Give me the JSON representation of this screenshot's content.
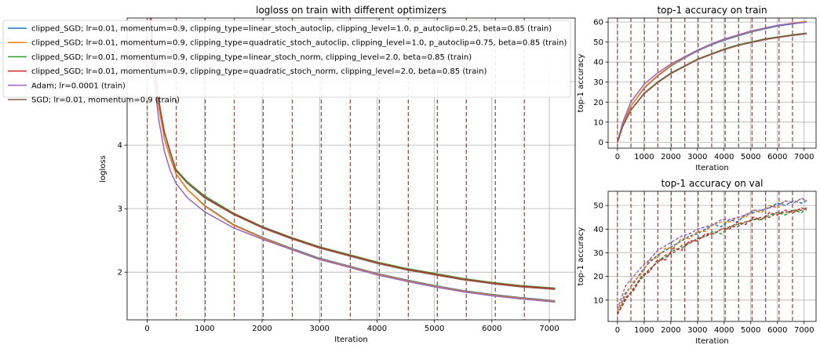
{
  "chart_data": [
    {
      "id": "main",
      "type": "line",
      "title": "logloss on train with different optimizers",
      "xlabel": "Iteration",
      "ylabel": "logloss",
      "xlim": [
        -350,
        7450
      ],
      "ylim": [
        1.25,
        6.0
      ],
      "xticks": [
        0,
        1000,
        2000,
        3000,
        4000,
        5000,
        6000,
        7000
      ],
      "yticks": [
        2,
        3,
        4,
        5
      ],
      "grid": true,
      "legend_position": "upper-left",
      "epoch_markers": [
        0,
        505,
        1010,
        1515,
        2020,
        2525,
        3030,
        3535,
        4040,
        4545,
        5050,
        5555,
        6060,
        6565
      ],
      "series": [
        {
          "name": "clipped_SGD;  lr=0.01, momentum=0.9, clipping_type=linear_stoch_autoclip, clipping_level=1.0, p_autoclip=0.25, beta=0.85 (train)",
          "color": "#1f77b4",
          "x": [
            0,
            50,
            100,
            200,
            300,
            400,
            500,
            700,
            1000,
            1500,
            2000,
            2500,
            3000,
            3500,
            4000,
            4500,
            5000,
            5500,
            6000,
            6500,
            7100
          ],
          "y": [
            6.9,
            6.2,
            5.4,
            4.6,
            4.1,
            3.8,
            3.55,
            3.3,
            3.05,
            2.75,
            2.55,
            2.38,
            2.22,
            2.1,
            1.98,
            1.88,
            1.79,
            1.71,
            1.65,
            1.6,
            1.55
          ]
        },
        {
          "name": "clipped_SGD;  lr=0.01, momentum=0.9, clipping_type=quadratic_stoch_autoclip, clipping_level=1.0, p_autoclip=0.75, beta=0.85 (train)",
          "color": "#ff7f0e",
          "x": [
            0,
            50,
            100,
            200,
            300,
            400,
            500,
            700,
            1000,
            1500,
            2000,
            2500,
            3000,
            3500,
            4000,
            4500,
            5000,
            5500,
            6000,
            6500,
            7100
          ],
          "y": [
            6.9,
            6.2,
            5.4,
            4.6,
            4.1,
            3.8,
            3.55,
            3.3,
            3.04,
            2.74,
            2.54,
            2.37,
            2.21,
            2.09,
            1.97,
            1.87,
            1.78,
            1.7,
            1.64,
            1.59,
            1.54
          ]
        },
        {
          "name": "clipped_SGD;  lr=0.01, momentum=0.9, clipping_type=linear_stoch_norm, clipping_level=2.0, beta=0.85 (train)",
          "color": "#2ca02c",
          "x": [
            0,
            50,
            100,
            200,
            300,
            400,
            500,
            700,
            1000,
            1500,
            2000,
            2500,
            3000,
            3500,
            4000,
            4500,
            5000,
            5500,
            6000,
            6500,
            7100
          ],
          "y": [
            6.9,
            6.25,
            5.5,
            4.7,
            4.2,
            3.9,
            3.62,
            3.42,
            3.2,
            2.93,
            2.72,
            2.55,
            2.4,
            2.28,
            2.16,
            2.06,
            1.98,
            1.9,
            1.84,
            1.79,
            1.75
          ]
        },
        {
          "name": "clipped_SGD;  lr=0.01, momentum=0.9, clipping_type=quadratic_stoch_norm, clipping_level=2.0, beta=0.85 (train)",
          "color": "#d62728",
          "x": [
            0,
            50,
            100,
            200,
            300,
            400,
            500,
            700,
            1000,
            1500,
            2000,
            2500,
            3000,
            3500,
            4000,
            4500,
            5000,
            5500,
            6000,
            6500,
            7100
          ],
          "y": [
            6.9,
            6.25,
            5.5,
            4.7,
            4.2,
            3.9,
            3.6,
            3.4,
            3.18,
            2.92,
            2.71,
            2.54,
            2.39,
            2.27,
            2.15,
            2.05,
            1.97,
            1.89,
            1.83,
            1.78,
            1.74
          ]
        },
        {
          "name": "Adam;  lr=0.0001 (train)",
          "color": "#9467bd",
          "x": [
            0,
            50,
            100,
            200,
            300,
            400,
            500,
            700,
            1000,
            1500,
            2000,
            2500,
            3000,
            3500,
            4000,
            4500,
            5000,
            5500,
            6000,
            6500,
            7100
          ],
          "y": [
            6.9,
            6.0,
            5.2,
            4.4,
            3.9,
            3.6,
            3.4,
            3.17,
            2.95,
            2.7,
            2.52,
            2.36,
            2.2,
            2.08,
            1.96,
            1.86,
            1.77,
            1.69,
            1.63,
            1.58,
            1.53
          ]
        },
        {
          "name": "SGD;  lr=0.01, momentum=0.9 (train)",
          "color": "#8c564b",
          "x": [
            0,
            50,
            100,
            200,
            300,
            400,
            500,
            700,
            1000,
            1500,
            2000,
            2500,
            3000,
            3500,
            4000,
            4500,
            5000,
            5500,
            6000,
            6500,
            7100
          ],
          "y": [
            6.9,
            6.25,
            5.5,
            4.7,
            4.2,
            3.88,
            3.6,
            3.4,
            3.17,
            2.91,
            2.7,
            2.53,
            2.38,
            2.26,
            2.14,
            2.04,
            1.96,
            1.88,
            1.82,
            1.77,
            1.73
          ]
        }
      ]
    },
    {
      "id": "acc_train",
      "type": "line",
      "title": "top-1 accuracy on train",
      "xlabel": "Iteration",
      "ylabel": "top-1 accuracy",
      "xlim": [
        -350,
        7450
      ],
      "ylim": [
        -3,
        62
      ],
      "xticks": [
        0,
        1000,
        2000,
        3000,
        4000,
        5000,
        6000,
        7000
      ],
      "yticks": [
        0,
        10,
        20,
        30,
        40,
        50,
        60
      ],
      "grid": true,
      "epoch_markers": [
        0,
        505,
        1010,
        1515,
        2020,
        2525,
        3030,
        3535,
        4040,
        4545,
        5050,
        5555,
        6060,
        6565
      ],
      "series": [
        {
          "name": "clipped_SGD linear_stoch_autoclip",
          "color": "#1f77b4",
          "x": [
            0,
            200,
            500,
            1000,
            1500,
            2000,
            2500,
            3000,
            3500,
            4000,
            4500,
            5000,
            5500,
            6000,
            6500,
            7100
          ],
          "y": [
            0,
            9,
            18,
            27,
            33,
            38,
            42,
            45.5,
            48.5,
            51,
            53,
            55,
            56.5,
            58,
            59,
            60
          ]
        },
        {
          "name": "clipped_SGD quadratic_stoch_autoclip",
          "color": "#ff7f0e",
          "x": [
            0,
            200,
            500,
            1000,
            1500,
            2000,
            2500,
            3000,
            3500,
            4000,
            4500,
            5000,
            5500,
            6000,
            6500,
            7100
          ],
          "y": [
            0,
            9,
            18,
            27.3,
            33.3,
            38.3,
            42.3,
            45.8,
            48.8,
            51.3,
            53.3,
            55.3,
            56.8,
            58.3,
            59.3,
            60.3
          ]
        },
        {
          "name": "clipped_SGD linear_stoch_norm",
          "color": "#2ca02c",
          "x": [
            0,
            200,
            500,
            1000,
            1500,
            2000,
            2500,
            3000,
            3500,
            4000,
            4500,
            5000,
            5500,
            6000,
            6500,
            7100
          ],
          "y": [
            0,
            8,
            16,
            24.5,
            30,
            34.5,
            38,
            41.5,
            44,
            46.5,
            48.5,
            50,
            51.5,
            52.5,
            53.5,
            54.5
          ]
        },
        {
          "name": "clipped_SGD quadratic_stoch_norm",
          "color": "#d62728",
          "x": [
            0,
            200,
            500,
            1000,
            1500,
            2000,
            2500,
            3000,
            3500,
            4000,
            4500,
            5000,
            5500,
            6000,
            6500,
            7100
          ],
          "y": [
            0,
            8,
            16,
            24.3,
            29.8,
            34.3,
            37.8,
            41.3,
            43.8,
            46.3,
            48.3,
            49.8,
            51.3,
            52.3,
            53.3,
            54.3
          ]
        },
        {
          "name": "Adam",
          "color": "#9467bd",
          "x": [
            0,
            200,
            500,
            1000,
            1500,
            2000,
            2500,
            3000,
            3500,
            4000,
            4500,
            5000,
            5500,
            6000,
            6500,
            7100
          ],
          "y": [
            0,
            10,
            20,
            29,
            34.5,
            39,
            42.5,
            46,
            49,
            51.5,
            53.5,
            55.5,
            57,
            58.3,
            59.2,
            60
          ]
        },
        {
          "name": "SGD",
          "color": "#8c564b",
          "x": [
            0,
            200,
            500,
            1000,
            1500,
            2000,
            2500,
            3000,
            3500,
            4000,
            4500,
            5000,
            5500,
            6000,
            6500,
            7100
          ],
          "y": [
            0,
            8,
            16,
            24.2,
            29.7,
            34.2,
            37.7,
            41.2,
            43.7,
            46.2,
            48.2,
            49.7,
            51.2,
            52.2,
            53.2,
            54.2
          ]
        }
      ]
    },
    {
      "id": "acc_val",
      "type": "line",
      "title": "top-1 accuracy on val",
      "xlabel": "Iteration",
      "ylabel": "top-1 accuracy",
      "xlim": [
        -350,
        7450
      ],
      "ylim": [
        1,
        56
      ],
      "xticks": [
        0,
        1000,
        2000,
        3000,
        4000,
        5000,
        6000,
        7000
      ],
      "yticks": [
        10,
        20,
        30,
        40,
        50
      ],
      "grid": true,
      "linestyle": "dashed",
      "epoch_markers": [
        0,
        505,
        1010,
        1515,
        2020,
        2525,
        3030,
        3535,
        4040,
        4545,
        5050,
        5555,
        6060,
        6565
      ],
      "series": [
        {
          "name": "clipped_SGD linear_stoch_autoclip",
          "color": "#1f77b4",
          "x": [
            0,
            300,
            600,
            900,
            1200,
            1500,
            1800,
            2100,
            2400,
            2700,
            3000,
            3300,
            3600,
            3900,
            4200,
            4500,
            4800,
            5100,
            5400,
            5700,
            6000,
            6300,
            6600,
            6900,
            7100
          ],
          "y": [
            5,
            13,
            17,
            22,
            26,
            29,
            31,
            33,
            35,
            37,
            38,
            40,
            42,
            41,
            44,
            43,
            46,
            47,
            48,
            49,
            51,
            50,
            52,
            51,
            52
          ]
        },
        {
          "name": "clipped_SGD quadratic_stoch_autoclip",
          "color": "#ff7f0e",
          "x": [
            0,
            300,
            600,
            900,
            1200,
            1500,
            1800,
            2100,
            2400,
            2700,
            3000,
            3300,
            3600,
            3900,
            4200,
            4500,
            4800,
            5100,
            5400,
            5700,
            6000,
            6300,
            6600,
            6900,
            7100
          ],
          "y": [
            5,
            12,
            18,
            21,
            27,
            28,
            32,
            32,
            36,
            36,
            39,
            39,
            42,
            43,
            43,
            45,
            45,
            48,
            47,
            50,
            49,
            52,
            51,
            53,
            52
          ]
        },
        {
          "name": "clipped_SGD linear_stoch_norm",
          "color": "#2ca02c",
          "x": [
            0,
            300,
            600,
            900,
            1200,
            1500,
            1800,
            2100,
            2400,
            2700,
            3000,
            3300,
            3600,
            3900,
            4200,
            4500,
            4800,
            5100,
            5400,
            5700,
            6000,
            6300,
            6600,
            6900,
            7100
          ],
          "y": [
            4,
            10,
            15,
            19,
            23,
            26,
            28,
            31,
            32,
            34,
            36,
            37,
            39,
            38,
            41,
            42,
            43,
            44,
            44,
            46,
            47,
            46,
            48,
            47,
            49
          ]
        },
        {
          "name": "clipped_SGD quadratic_stoch_norm",
          "color": "#d62728",
          "x": [
            0,
            300,
            600,
            900,
            1200,
            1500,
            1800,
            2100,
            2400,
            2700,
            3000,
            3300,
            3600,
            3900,
            4200,
            4500,
            4800,
            5100,
            5400,
            5700,
            6000,
            6300,
            6600,
            6900,
            7100
          ],
          "y": [
            4,
            11,
            14,
            20,
            22,
            27,
            27,
            32,
            31,
            35,
            35,
            38,
            38,
            40,
            40,
            43,
            42,
            45,
            44,
            47,
            46,
            48,
            47,
            49,
            48
          ]
        },
        {
          "name": "Adam",
          "color": "#9467bd",
          "x": [
            0,
            300,
            600,
            900,
            1200,
            1500,
            1800,
            2100,
            2400,
            2700,
            3000,
            3300,
            3600,
            3900,
            4200,
            4500,
            4800,
            5100,
            5400,
            5700,
            6000,
            6300,
            6600,
            6900,
            7100
          ],
          "y": [
            6,
            16,
            20,
            24,
            27,
            31,
            33,
            35,
            37,
            38,
            40,
            41,
            42,
            44,
            44,
            45,
            46,
            48,
            48,
            49,
            50,
            52,
            51,
            53,
            52
          ]
        },
        {
          "name": "SGD",
          "color": "#8c564b",
          "x": [
            0,
            300,
            600,
            900,
            1200,
            1500,
            1800,
            2100,
            2400,
            2700,
            3000,
            3300,
            3600,
            3900,
            4200,
            4500,
            4800,
            5100,
            5400,
            5700,
            6000,
            6300,
            6600,
            6900,
            7100
          ],
          "y": [
            4,
            10,
            15,
            20,
            23,
            26,
            29,
            30,
            33,
            34,
            36,
            37,
            38,
            40,
            41,
            41,
            43,
            44,
            45,
            45,
            47,
            47,
            48,
            48,
            49
          ]
        }
      ]
    }
  ],
  "epoch_marker_color": "#8c564b"
}
